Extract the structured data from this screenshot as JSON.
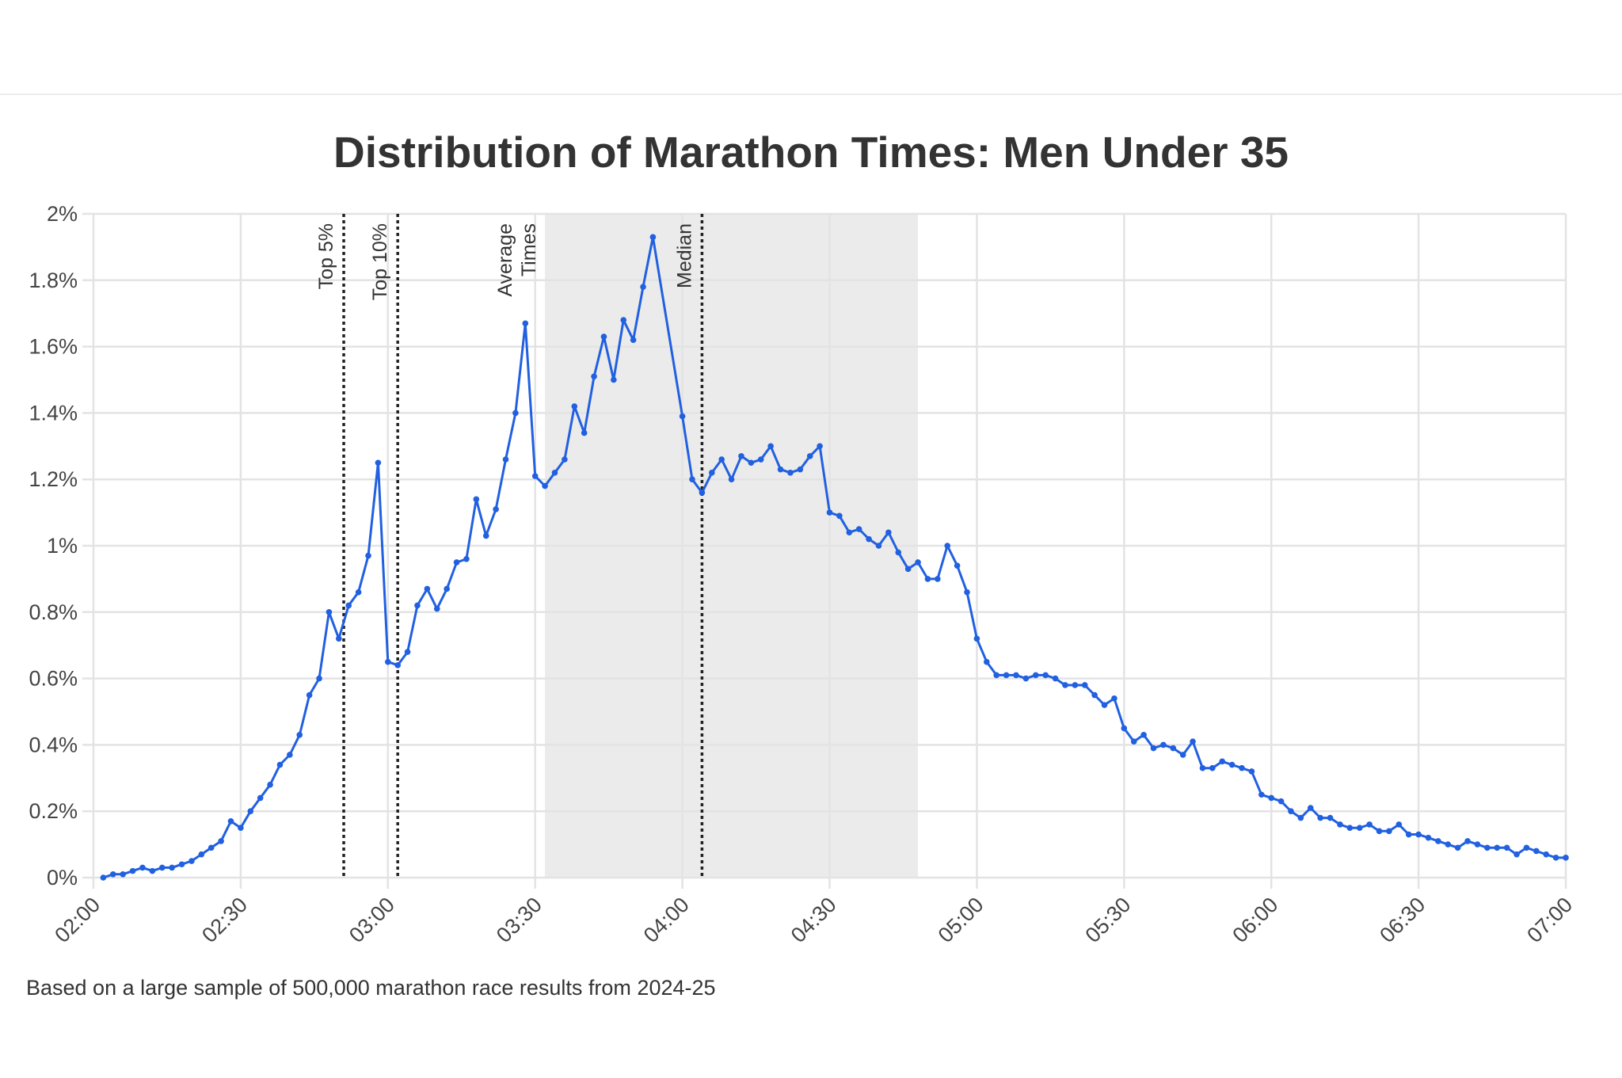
{
  "chart_data": {
    "type": "line",
    "title": "Distribution of Marathon Times: Men Under 35",
    "footnote": "Based on a large sample of 500,000 marathon race results from 2024-25",
    "xlabel": "",
    "ylabel": "",
    "xlim": [
      "02:00",
      "07:00"
    ],
    "ylim": [
      0,
      2
    ],
    "y_unit": "%",
    "grid": true,
    "line_color": "#2160e0",
    "shade_color": "#ebebeb",
    "x_ticks": [
      "02:00",
      "02:30",
      "03:00",
      "03:30",
      "04:00",
      "04:30",
      "05:00",
      "05:30",
      "06:00",
      "06:30",
      "07:00"
    ],
    "y_ticks": [
      "0%",
      "0.2%",
      "0.4%",
      "0.6%",
      "0.8%",
      "1%",
      "1.2%",
      "1.4%",
      "1.6%",
      "1.8%",
      "2%"
    ],
    "shaded_region": {
      "label": "Average Times",
      "label_lines": [
        "Average",
        "Times"
      ],
      "from": "03:32",
      "to": "04:48"
    },
    "reference_lines": [
      {
        "label": "Top 5%",
        "x": "02:51"
      },
      {
        "label": "Top 10%",
        "x": "03:02"
      },
      {
        "label": "Median",
        "x": "04:04"
      }
    ],
    "points": [
      [
        "02:02",
        0.0
      ],
      [
        "02:04",
        0.01
      ],
      [
        "02:06",
        0.01
      ],
      [
        "02:08",
        0.02
      ],
      [
        "02:10",
        0.03
      ],
      [
        "02:12",
        0.02
      ],
      [
        "02:14",
        0.03
      ],
      [
        "02:16",
        0.03
      ],
      [
        "02:18",
        0.04
      ],
      [
        "02:20",
        0.05
      ],
      [
        "02:22",
        0.07
      ],
      [
        "02:24",
        0.09
      ],
      [
        "02:26",
        0.11
      ],
      [
        "02:28",
        0.17
      ],
      [
        "02:30",
        0.15
      ],
      [
        "02:32",
        0.2
      ],
      [
        "02:34",
        0.24
      ],
      [
        "02:36",
        0.28
      ],
      [
        "02:38",
        0.34
      ],
      [
        "02:40",
        0.37
      ],
      [
        "02:42",
        0.43
      ],
      [
        "02:44",
        0.55
      ],
      [
        "02:46",
        0.6
      ],
      [
        "02:48",
        0.8
      ],
      [
        "02:50",
        0.72
      ],
      [
        "02:52",
        0.82
      ],
      [
        "02:54",
        0.86
      ],
      [
        "02:56",
        0.97
      ],
      [
        "02:58",
        1.25
      ],
      [
        "03:00",
        0.65
      ],
      [
        "03:02",
        0.64
      ],
      [
        "03:04",
        0.68
      ],
      [
        "03:06",
        0.82
      ],
      [
        "03:08",
        0.87
      ],
      [
        "03:10",
        0.81
      ],
      [
        "03:12",
        0.87
      ],
      [
        "03:14",
        0.95
      ],
      [
        "03:16",
        0.96
      ],
      [
        "03:18",
        1.14
      ],
      [
        "03:20",
        1.03
      ],
      [
        "03:22",
        1.11
      ],
      [
        "03:24",
        1.26
      ],
      [
        "03:26",
        1.4
      ],
      [
        "03:28",
        1.67
      ],
      [
        "03:30",
        1.21
      ],
      [
        "03:32",
        1.18
      ],
      [
        "03:34",
        1.22
      ],
      [
        "03:36",
        1.26
      ],
      [
        "03:38",
        1.42
      ],
      [
        "03:40",
        1.34
      ],
      [
        "03:42",
        1.51
      ],
      [
        "03:44",
        1.63
      ],
      [
        "03:46",
        1.5
      ],
      [
        "03:48",
        1.68
      ],
      [
        "03:50",
        1.62
      ],
      [
        "03:52",
        1.78
      ],
      [
        "03:54",
        1.93
      ],
      [
        "04:00",
        1.39
      ],
      [
        "04:02",
        1.2
      ],
      [
        "04:04",
        1.16
      ],
      [
        "04:06",
        1.22
      ],
      [
        "04:08",
        1.26
      ],
      [
        "04:10",
        1.2
      ],
      [
        "04:12",
        1.27
      ],
      [
        "04:14",
        1.25
      ],
      [
        "04:16",
        1.26
      ],
      [
        "04:18",
        1.3
      ],
      [
        "04:20",
        1.23
      ],
      [
        "04:22",
        1.22
      ],
      [
        "04:24",
        1.23
      ],
      [
        "04:26",
        1.27
      ],
      [
        "04:28",
        1.3
      ],
      [
        "04:30",
        1.1
      ],
      [
        "04:32",
        1.09
      ],
      [
        "04:34",
        1.04
      ],
      [
        "04:36",
        1.05
      ],
      [
        "04:38",
        1.02
      ],
      [
        "04:40",
        1.0
      ],
      [
        "04:42",
        1.04
      ],
      [
        "04:44",
        0.98
      ],
      [
        "04:46",
        0.93
      ],
      [
        "04:48",
        0.95
      ],
      [
        "04:50",
        0.9
      ],
      [
        "04:52",
        0.9
      ],
      [
        "04:54",
        1.0
      ],
      [
        "04:56",
        0.94
      ],
      [
        "04:58",
        0.86
      ],
      [
        "05:00",
        0.72
      ],
      [
        "05:02",
        0.65
      ],
      [
        "05:04",
        0.61
      ],
      [
        "05:06",
        0.61
      ],
      [
        "05:08",
        0.61
      ],
      [
        "05:10",
        0.6
      ],
      [
        "05:12",
        0.61
      ],
      [
        "05:14",
        0.61
      ],
      [
        "05:16",
        0.6
      ],
      [
        "05:18",
        0.58
      ],
      [
        "05:20",
        0.58
      ],
      [
        "05:22",
        0.58
      ],
      [
        "05:24",
        0.55
      ],
      [
        "05:26",
        0.52
      ],
      [
        "05:28",
        0.54
      ],
      [
        "05:30",
        0.45
      ],
      [
        "05:32",
        0.41
      ],
      [
        "05:34",
        0.43
      ],
      [
        "05:36",
        0.39
      ],
      [
        "05:38",
        0.4
      ],
      [
        "05:40",
        0.39
      ],
      [
        "05:42",
        0.37
      ],
      [
        "05:44",
        0.41
      ],
      [
        "05:46",
        0.33
      ],
      [
        "05:48",
        0.33
      ],
      [
        "05:50",
        0.35
      ],
      [
        "05:52",
        0.34
      ],
      [
        "05:54",
        0.33
      ],
      [
        "05:56",
        0.32
      ],
      [
        "05:58",
        0.25
      ],
      [
        "06:00",
        0.24
      ],
      [
        "06:02",
        0.23
      ],
      [
        "06:04",
        0.2
      ],
      [
        "06:06",
        0.18
      ],
      [
        "06:08",
        0.21
      ],
      [
        "06:10",
        0.18
      ],
      [
        "06:12",
        0.18
      ],
      [
        "06:14",
        0.16
      ],
      [
        "06:16",
        0.15
      ],
      [
        "06:18",
        0.15
      ],
      [
        "06:20",
        0.16
      ],
      [
        "06:22",
        0.14
      ],
      [
        "06:24",
        0.14
      ],
      [
        "06:26",
        0.16
      ],
      [
        "06:28",
        0.13
      ],
      [
        "06:30",
        0.13
      ],
      [
        "06:32",
        0.12
      ],
      [
        "06:34",
        0.11
      ],
      [
        "06:36",
        0.1
      ],
      [
        "06:38",
        0.09
      ],
      [
        "06:40",
        0.11
      ],
      [
        "06:42",
        0.1
      ],
      [
        "06:44",
        0.09
      ],
      [
        "06:46",
        0.09
      ],
      [
        "06:48",
        0.09
      ],
      [
        "06:50",
        0.07
      ],
      [
        "06:52",
        0.09
      ],
      [
        "06:54",
        0.08
      ],
      [
        "06:56",
        0.07
      ],
      [
        "06:58",
        0.06
      ],
      [
        "07:00",
        0.06
      ]
    ]
  }
}
